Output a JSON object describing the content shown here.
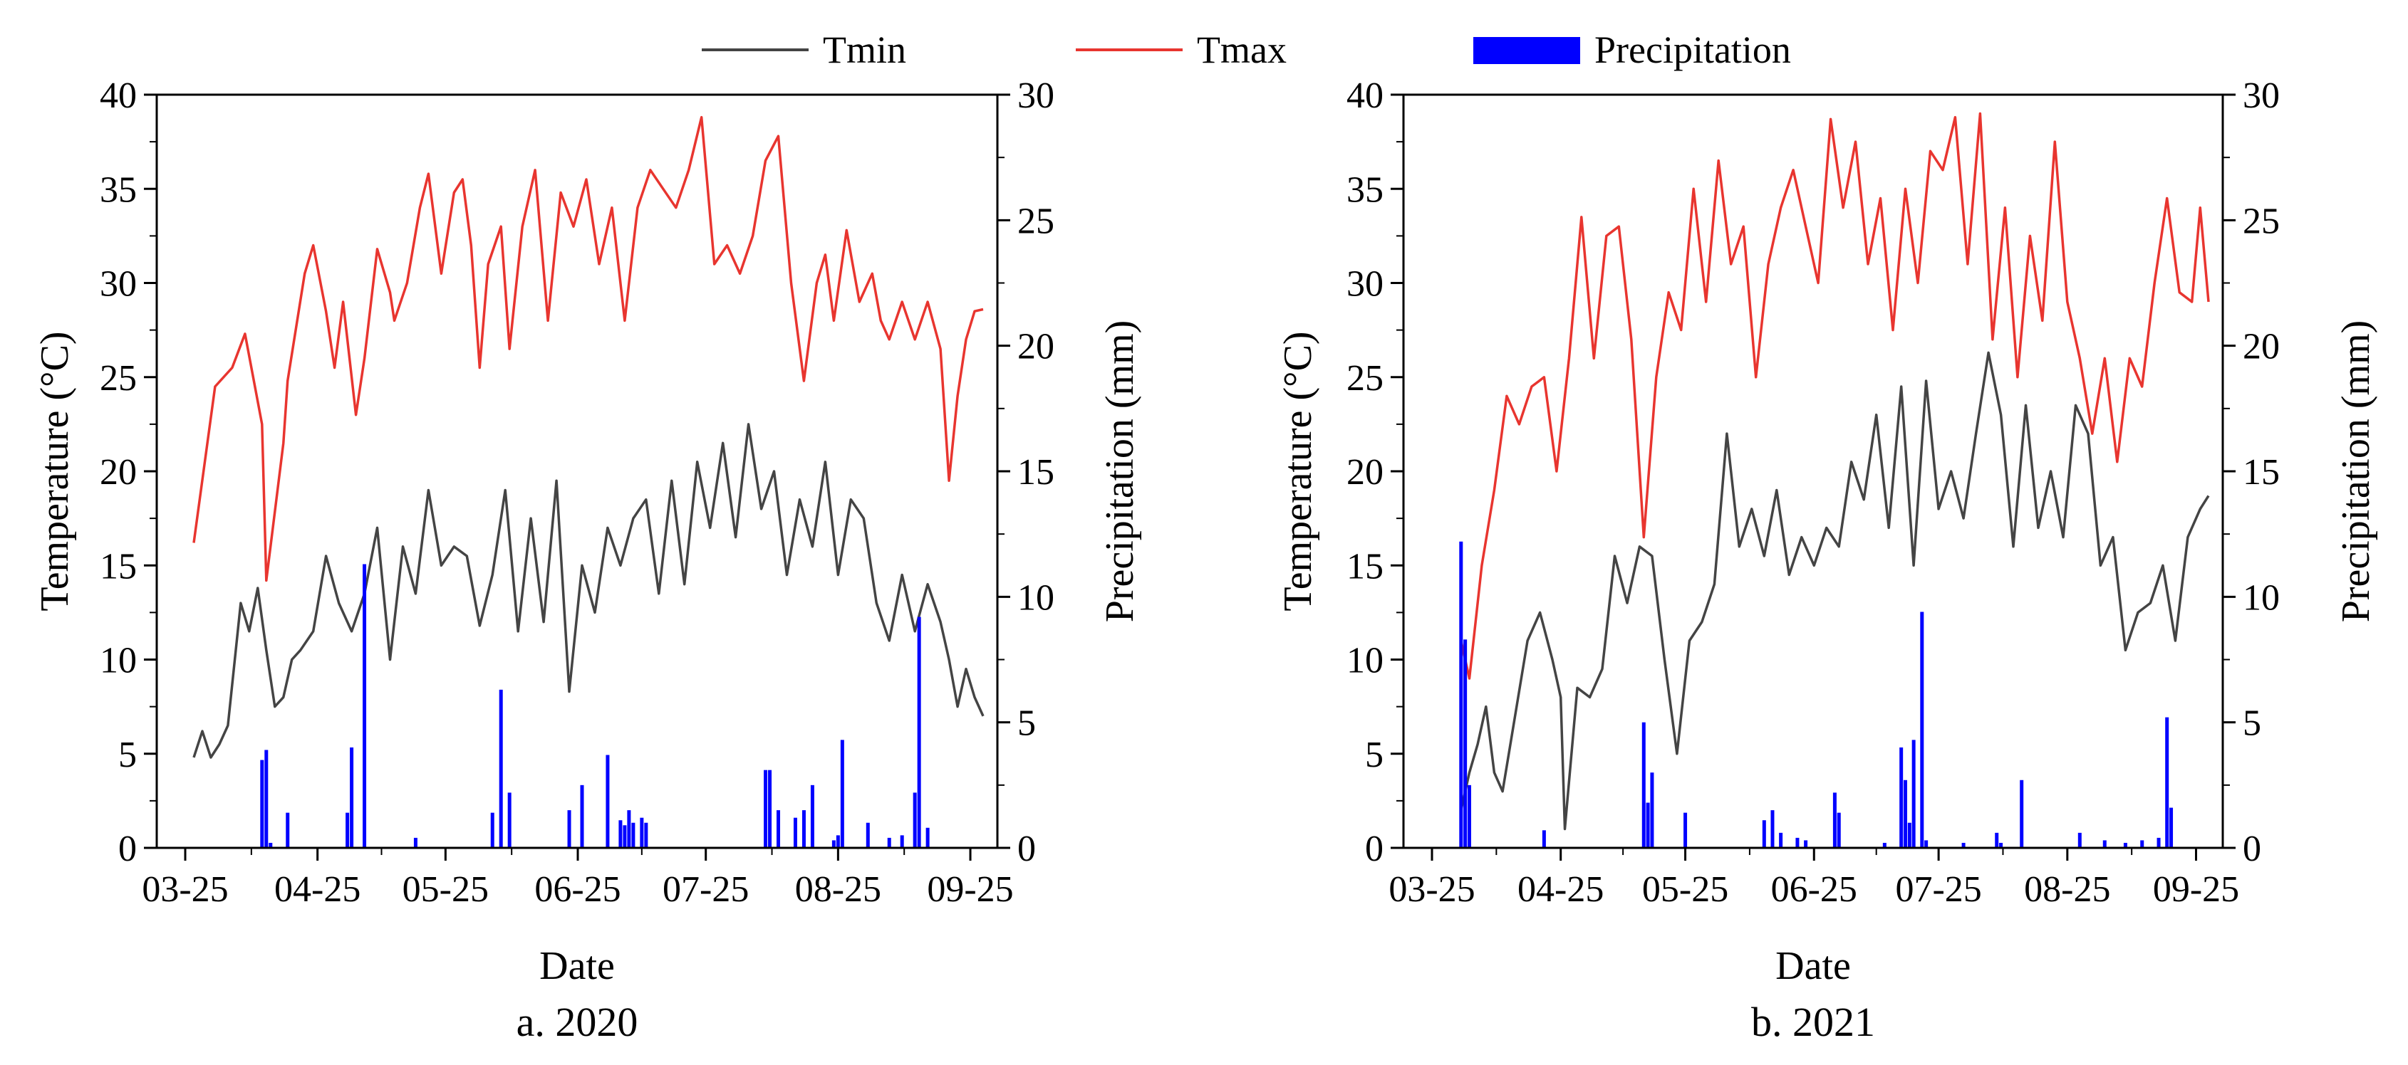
{
  "legend": {
    "tmin": "Tmin",
    "tmax": "Tmax",
    "precip": "Precipitation"
  },
  "colors": {
    "tmin": "#444444",
    "tmax": "#e8352f",
    "precip": "#0000ff"
  },
  "chart_data": [
    {
      "type": "line",
      "caption": "a. 2020",
      "xlabel": "Date",
      "ylabel": "Temperature (°C)",
      "y2label": "Precipitation (mm)",
      "xlim": [
        0,
        187
      ],
      "x_ticks": [
        {
          "day": 0,
          "label": "03-25"
        },
        {
          "day": 31,
          "label": "04-25"
        },
        {
          "day": 61,
          "label": "05-25"
        },
        {
          "day": 92,
          "label": "06-25"
        },
        {
          "day": 122,
          "label": "07-25"
        },
        {
          "day": 153,
          "label": "08-25"
        },
        {
          "day": 184,
          "label": "09-25"
        }
      ],
      "ylim": [
        0,
        40
      ],
      "y_ticks": [
        0,
        5,
        10,
        15,
        20,
        25,
        30,
        35,
        40
      ],
      "y2lim": [
        0,
        30
      ],
      "y2_ticks": [
        0,
        5,
        10,
        15,
        20,
        25,
        30
      ],
      "series": [
        {
          "name": "Tmax",
          "days": [
            2,
            7,
            11,
            14,
            18,
            19,
            23,
            24,
            28,
            30,
            33,
            35,
            37,
            40,
            42,
            45,
            48,
            49,
            52,
            55,
            57,
            60,
            63,
            65,
            67,
            69,
            71,
            74,
            76,
            79,
            82,
            85,
            88,
            91,
            94,
            97,
            100,
            103,
            106,
            109,
            112,
            115,
            118,
            121,
            124,
            127,
            130,
            133,
            136,
            139,
            142,
            145,
            148,
            150,
            152,
            155,
            158,
            161,
            163,
            165,
            168,
            171,
            174,
            177,
            179,
            181,
            183,
            185,
            187
          ],
          "values": [
            16.2,
            24.5,
            25.5,
            27.3,
            22.5,
            14.2,
            21.5,
            24.8,
            30.5,
            32.0,
            28.5,
            25.5,
            29.0,
            23.0,
            26.0,
            31.8,
            29.5,
            28.0,
            30.0,
            34.0,
            35.8,
            30.5,
            34.8,
            35.5,
            32.0,
            25.5,
            31.0,
            33.0,
            26.5,
            33.0,
            36.0,
            28.0,
            34.8,
            33.0,
            35.5,
            31.0,
            34.0,
            28.0,
            34.0,
            36.0,
            35.0,
            34.0,
            36.0,
            38.8,
            31.0,
            32.0,
            30.5,
            32.5,
            36.5,
            37.8,
            30.0,
            24.8,
            30.0,
            31.5,
            28.0,
            32.8,
            29.0,
            30.5,
            28.0,
            27.0,
            29.0,
            27.0,
            29.0,
            26.5,
            19.5,
            24.0,
            27.0,
            28.5,
            28.6
          ]
        },
        {
          "name": "Tmin",
          "days": [
            2,
            4,
            6,
            8,
            10,
            13,
            15,
            17,
            19,
            21,
            23,
            25,
            27,
            30,
            33,
            36,
            39,
            42,
            45,
            48,
            51,
            54,
            57,
            60,
            63,
            66,
            69,
            72,
            75,
            78,
            81,
            84,
            87,
            90,
            93,
            96,
            99,
            102,
            105,
            108,
            111,
            114,
            117,
            120,
            123,
            126,
            129,
            132,
            135,
            138,
            141,
            144,
            147,
            150,
            153,
            156,
            159,
            162,
            165,
            168,
            171,
            174,
            177,
            179,
            181,
            183,
            185,
            187
          ],
          "values": [
            4.8,
            6.2,
            4.8,
            5.5,
            6.5,
            13.0,
            11.5,
            13.8,
            10.5,
            7.5,
            8.0,
            10.0,
            10.5,
            11.5,
            15.5,
            13.0,
            11.5,
            13.5,
            17.0,
            10.0,
            16.0,
            13.5,
            19.0,
            15.0,
            16.0,
            15.5,
            11.8,
            14.5,
            19.0,
            11.5,
            17.5,
            12.0,
            19.5,
            8.3,
            15.0,
            12.5,
            17.0,
            15.0,
            17.5,
            18.5,
            13.5,
            19.5,
            14.0,
            20.5,
            17.0,
            21.5,
            16.5,
            22.5,
            18.0,
            20.0,
            14.5,
            18.5,
            16.0,
            20.5,
            14.5,
            18.5,
            17.5,
            13.0,
            11.0,
            14.5,
            11.5,
            14.0,
            12.0,
            10.0,
            7.5,
            9.5,
            8.0,
            7.0
          ]
        },
        {
          "name": "Precipitation",
          "days": [
            18,
            19,
            20,
            24,
            38,
            39,
            42,
            54,
            72,
            74,
            76,
            90,
            93,
            99,
            102,
            103,
            104,
            105,
            107,
            108,
            136,
            137,
            139,
            143,
            145,
            147,
            152,
            153,
            154,
            160,
            165,
            168,
            171,
            172,
            174
          ],
          "values": [
            3.5,
            3.9,
            0.2,
            1.4,
            1.4,
            4.0,
            11.3,
            0.4,
            1.4,
            6.3,
            2.2,
            1.5,
            2.5,
            3.7,
            1.1,
            0.9,
            1.5,
            1.0,
            1.2,
            1.0,
            3.1,
            3.1,
            1.5,
            1.2,
            1.5,
            2.5,
            0.3,
            0.5,
            4.3,
            1.0,
            0.4,
            0.5,
            2.2,
            9.2,
            0.8
          ]
        }
      ]
    },
    {
      "type": "line",
      "caption": "b. 2021",
      "xlabel": "Date",
      "ylabel": "Temperature (°C)",
      "y2label": "Precipitation (mm)",
      "xlim": [
        0,
        187
      ],
      "x_ticks": [
        {
          "day": 0,
          "label": "03-25"
        },
        {
          "day": 31,
          "label": "04-25"
        },
        {
          "day": 61,
          "label": "05-25"
        },
        {
          "day": 92,
          "label": "06-25"
        },
        {
          "day": 122,
          "label": "07-25"
        },
        {
          "day": 153,
          "label": "08-25"
        },
        {
          "day": 184,
          "label": "09-25"
        }
      ],
      "ylim": [
        0,
        40
      ],
      "y_ticks": [
        0,
        5,
        10,
        15,
        20,
        25,
        30,
        35,
        40
      ],
      "y2lim": [
        0,
        30
      ],
      "y2_ticks": [
        0,
        5,
        10,
        15,
        20,
        25,
        30
      ],
      "series": [
        {
          "name": "Tmax",
          "days": [
            7,
            9,
            12,
            15,
            18,
            21,
            24,
            27,
            30,
            33,
            36,
            39,
            42,
            45,
            48,
            51,
            54,
            57,
            60,
            63,
            66,
            69,
            72,
            75,
            78,
            81,
            84,
            87,
            90,
            93,
            96,
            99,
            102,
            105,
            108,
            111,
            114,
            117,
            120,
            123,
            126,
            129,
            132,
            135,
            138,
            141,
            144,
            147,
            150,
            153,
            156,
            159,
            162,
            165,
            168,
            171,
            174,
            177,
            180,
            183,
            185,
            187
          ],
          "values": [
            11.0,
            9.0,
            15.0,
            19.0,
            24.0,
            22.5,
            24.5,
            25.0,
            20.0,
            26.0,
            33.5,
            26.0,
            32.5,
            33.0,
            27.0,
            16.5,
            25.0,
            29.5,
            27.5,
            35.0,
            29.0,
            36.5,
            31.0,
            33.0,
            25.0,
            31.0,
            34.0,
            36.0,
            33.0,
            30.0,
            38.7,
            34.0,
            37.5,
            31.0,
            34.5,
            27.5,
            35.0,
            30.0,
            37.0,
            36.0,
            38.8,
            31.0,
            39.0,
            27.0,
            34.0,
            25.0,
            32.5,
            28.0,
            37.5,
            29.0,
            26.0,
            22.0,
            26.0,
            20.5,
            26.0,
            24.5,
            30.0,
            34.5,
            29.5,
            29.0,
            34.0,
            29.0
          ]
        },
        {
          "name": "Tmin",
          "days": [
            7,
            9,
            11,
            13,
            15,
            17,
            20,
            23,
            26,
            29,
            31,
            32,
            35,
            38,
            41,
            44,
            47,
            50,
            53,
            56,
            59,
            62,
            65,
            68,
            71,
            74,
            77,
            80,
            83,
            86,
            89,
            92,
            95,
            98,
            101,
            104,
            107,
            110,
            113,
            116,
            119,
            122,
            125,
            128,
            131,
            134,
            137,
            140,
            143,
            146,
            149,
            152,
            155,
            158,
            161,
            164,
            167,
            170,
            173,
            176,
            179,
            182,
            185,
            187
          ],
          "values": [
            2.0,
            4.0,
            5.5,
            7.5,
            4.0,
            3.0,
            7.0,
            11.0,
            12.5,
            10.0,
            8.0,
            1.0,
            8.5,
            8.0,
            9.5,
            15.5,
            13.0,
            16.0,
            15.5,
            10.0,
            5.0,
            11.0,
            12.0,
            14.0,
            22.0,
            16.0,
            18.0,
            15.5,
            19.0,
            14.5,
            16.5,
            15.0,
            17.0,
            16.0,
            20.5,
            18.5,
            23.0,
            17.0,
            24.5,
            15.0,
            24.8,
            18.0,
            20.0,
            17.5,
            22.0,
            26.3,
            23.0,
            16.0,
            23.5,
            17.0,
            20.0,
            16.5,
            23.5,
            22.0,
            15.0,
            16.5,
            10.5,
            12.5,
            13.0,
            15.0,
            11.0,
            16.5,
            18.0,
            18.7
          ]
        },
        {
          "name": "Precipitation",
          "days": [
            7,
            8,
            9,
            27,
            51,
            52,
            53,
            61,
            80,
            82,
            84,
            88,
            90,
            97,
            98,
            109,
            113,
            114,
            115,
            116,
            118,
            119,
            128,
            136,
            137,
            142,
            156,
            162,
            167,
            171,
            175,
            177,
            178
          ],
          "values": [
            12.2,
            8.3,
            2.5,
            0.7,
            5.0,
            1.8,
            3.0,
            1.4,
            1.1,
            1.5,
            0.6,
            0.4,
            0.3,
            2.2,
            1.4,
            0.2,
            4.0,
            2.7,
            1.0,
            4.3,
            9.4,
            0.3,
            0.2,
            0.6,
            0.2,
            2.7,
            0.6,
            0.3,
            0.2,
            0.3,
            0.4,
            5.2,
            1.6
          ]
        }
      ]
    }
  ]
}
